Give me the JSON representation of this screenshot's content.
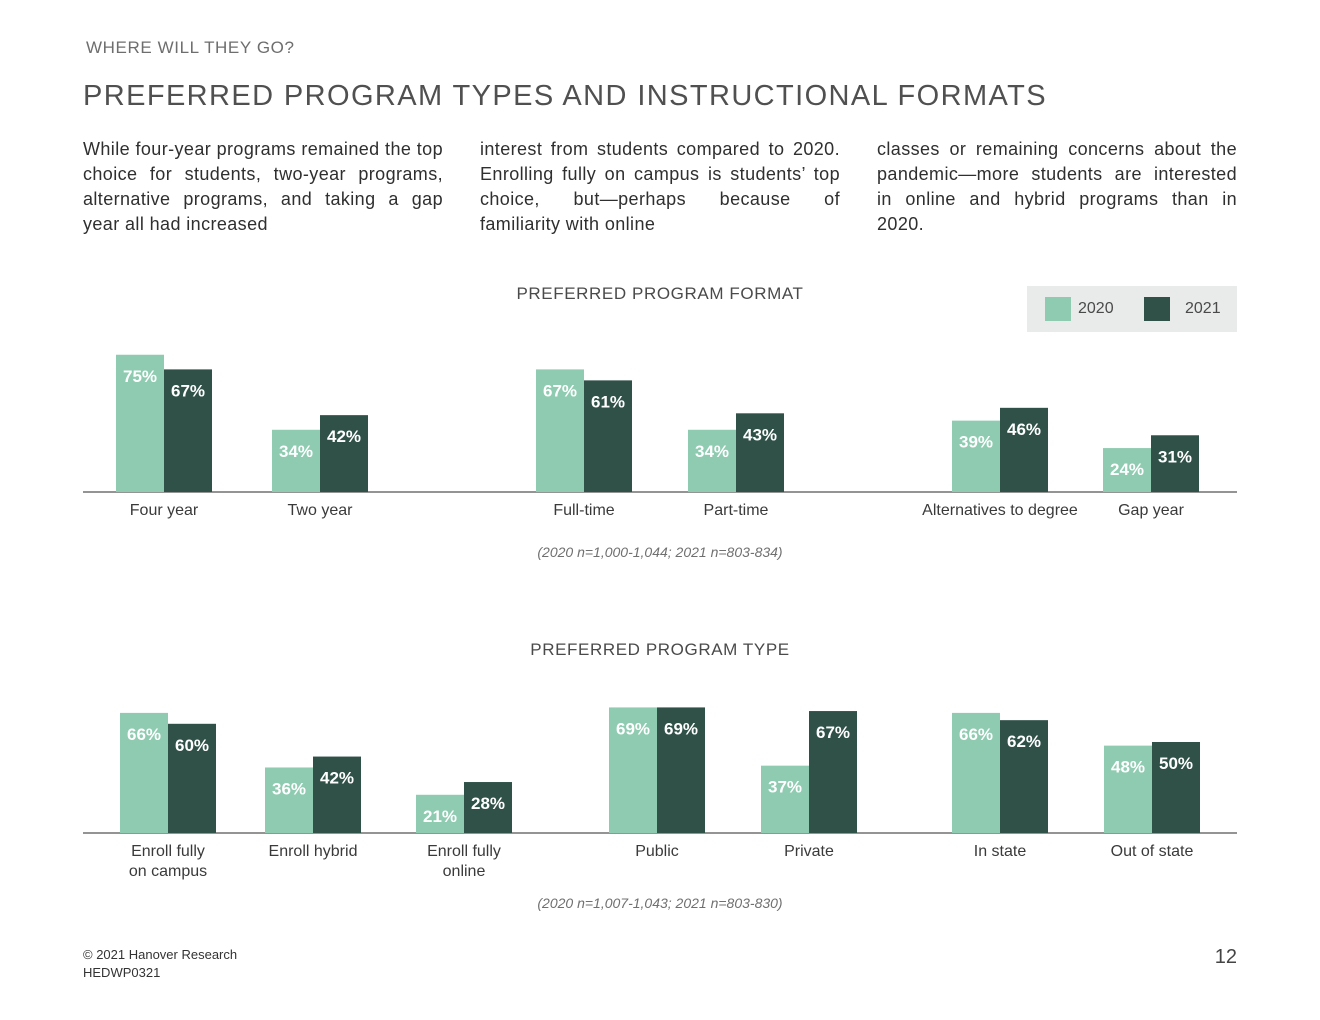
{
  "header": {
    "eyebrow": "WHERE WILL THEY GO?",
    "title": "PREFERRED PROGRAM TYPES AND INSTRUCTIONAL FORMATS"
  },
  "intro": {
    "col1": "While four-year programs remained the top choice for students, two-year programs, alternative programs, and taking a gap year all had increased",
    "col2": "interest from students compared to 2020. Enrolling fully on campus is students’ top choice, but—perhaps because of familiarity with online",
    "col3": "classes or remaining concerns about the pandemic—more students are interested in online and hybrid programs than in 2020."
  },
  "colors": {
    "y2020": "#8ecbb0",
    "y2021": "#2f5148",
    "axis": "#555555"
  },
  "legend": {
    "a": "2020",
    "b": "2021"
  },
  "chart_data": [
    {
      "type": "bar",
      "title": "PREFERRED PROGRAM FORMAT",
      "categories": [
        "Four year",
        "Two year",
        "Full-time",
        "Part-time",
        "Alternatives to degree",
        "Gap year"
      ],
      "series": [
        {
          "name": "2020",
          "values": [
            75,
            34,
            67,
            34,
            39,
            24
          ]
        },
        {
          "name": "2021",
          "values": [
            67,
            42,
            61,
            43,
            46,
            31
          ]
        }
      ],
      "value_suffix": "%",
      "note": "(2020 n=1,000-1,044; 2021 n=803-834)"
    },
    {
      "type": "bar",
      "title": "PREFERRED PROGRAM TYPE",
      "categories": [
        "Enroll fully\non campus",
        "Enroll hybrid",
        "Enroll fully\nonline",
        "Public",
        "Private",
        "In state",
        "Out of state"
      ],
      "series": [
        {
          "name": "2020",
          "values": [
            66,
            36,
            21,
            69,
            37,
            66,
            48
          ]
        },
        {
          "name": "2021",
          "values": [
            60,
            42,
            28,
            69,
            67,
            62,
            50
          ]
        }
      ],
      "value_suffix": "%",
      "note": "(2020 n=1,007-1,043; 2021 n=803-830)"
    }
  ],
  "footer": {
    "copyright": "© 2021 Hanover Research",
    "code": "HEDWP0321",
    "page": "12"
  }
}
